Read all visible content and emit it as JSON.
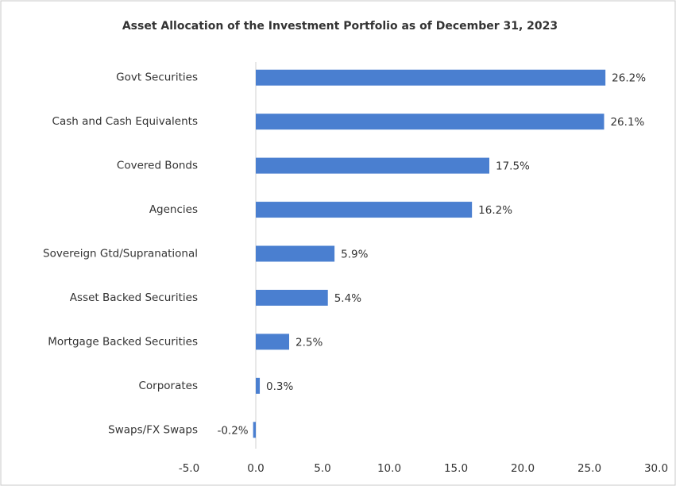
{
  "chart_data": {
    "type": "hbar",
    "title": "Asset Allocation of the Investment Portfolio as of December 31, 2023",
    "categories": [
      "Govt Securities",
      "Cash and Cash Equivalents",
      "Covered Bonds",
      "Agencies",
      "Sovereign Gtd/Supranational",
      "Asset Backed Securities",
      "Mortgage Backed Securities",
      "Corporates",
      "Swaps/FX Swaps"
    ],
    "values": [
      26.2,
      26.1,
      17.5,
      16.2,
      5.9,
      5.4,
      2.5,
      0.3,
      -0.2
    ],
    "value_labels": [
      "26.2%",
      "26.1%",
      "17.5%",
      "16.2%",
      "5.9%",
      "5.4%",
      "2.5%",
      "0.3%",
      "-0.2%"
    ],
    "color": "#4a7fd0",
    "xlim": [
      -5,
      30
    ],
    "xticks": [
      {
        "value": -5,
        "label": "-5.0"
      },
      {
        "value": 0,
        "label": "0.0"
      },
      {
        "value": 5,
        "label": "5.0"
      },
      {
        "value": 10,
        "label": "10.0"
      },
      {
        "value": 15,
        "label": "15.0"
      },
      {
        "value": 20,
        "label": "20.0"
      },
      {
        "value": 25,
        "label": "25.0"
      },
      {
        "value": 30,
        "label": "30.0"
      }
    ],
    "grid": false
  }
}
